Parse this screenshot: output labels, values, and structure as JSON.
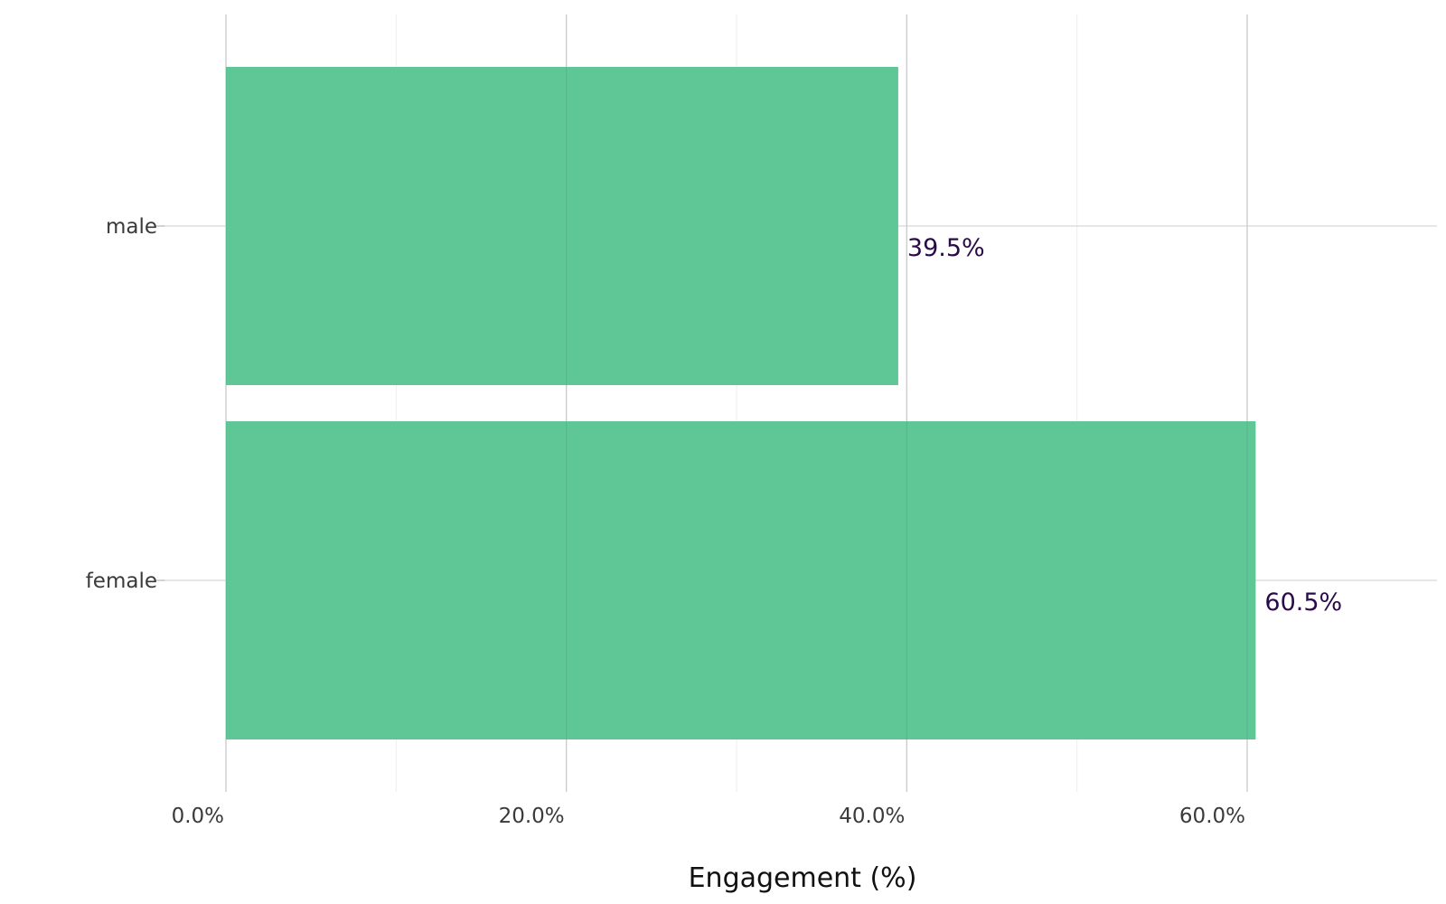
{
  "chart_data": {
    "type": "bar",
    "orientation": "horizontal",
    "categories": [
      "male",
      "female"
    ],
    "values": [
      39.5,
      60.5
    ],
    "data_labels": [
      "39.5%",
      "60.5%"
    ],
    "title": "",
    "xlabel": "Engagement (%)",
    "ylabel": "",
    "xlim": [
      0,
      70
    ],
    "x_ticks": [
      0,
      20,
      40,
      60
    ],
    "x_tick_labels": [
      "0.0%",
      "20.0%",
      "40.0%",
      "60.0%"
    ],
    "x_minor_ticks": [
      10,
      30,
      50
    ],
    "grid": true,
    "legend": "none",
    "colors": {
      "bar": "#5cc594",
      "data_label": "#2a0a4a"
    }
  }
}
